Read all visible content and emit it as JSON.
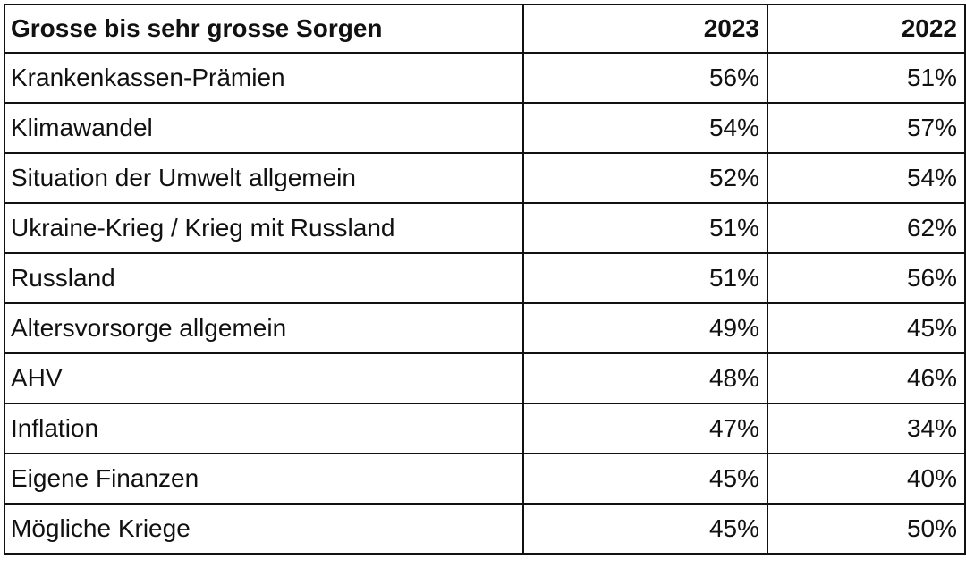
{
  "table": {
    "headers": [
      "Grosse bis sehr grosse Sorgen",
      "2023",
      "2022"
    ],
    "rows": [
      {
        "label": "Krankenkassen-Prämien",
        "y2023": "56%",
        "y2022": "51%"
      },
      {
        "label": "Klimawandel",
        "y2023": "54%",
        "y2022": "57%"
      },
      {
        "label": "Situation der Umwelt allgemein",
        "y2023": "52%",
        "y2022": "54%"
      },
      {
        "label": "Ukraine-Krieg / Krieg mit Russland",
        "y2023": "51%",
        "y2022": "62%"
      },
      {
        "label": "Russland",
        "y2023": "51%",
        "y2022": "56%"
      },
      {
        "label": "Altersvorsorge allgemein",
        "y2023": "49%",
        "y2022": "45%"
      },
      {
        "label": "AHV",
        "y2023": "48%",
        "y2022": "46%"
      },
      {
        "label": "Inflation",
        "y2023": "47%",
        "y2022": "34%"
      },
      {
        "label": "Eigene Finanzen",
        "y2023": "45%",
        "y2022": "40%"
      },
      {
        "label": "Mögliche Kriege",
        "y2023": "45%",
        "y2022": "50%"
      }
    ]
  }
}
